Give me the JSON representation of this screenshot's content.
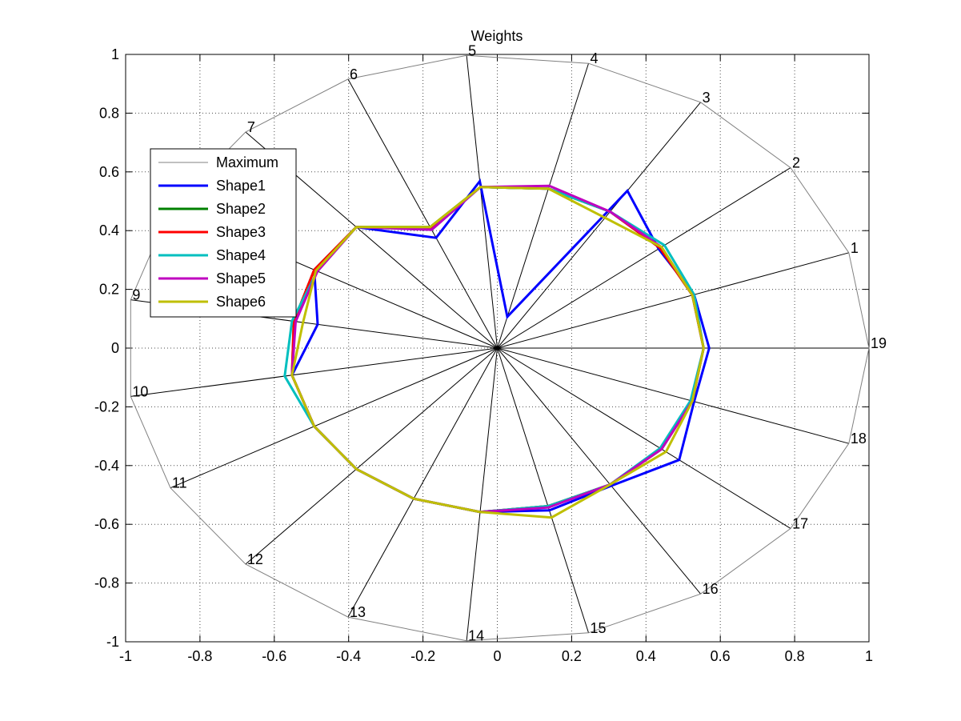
{
  "chart_data": {
    "type": "polar-line",
    "title": "Weights",
    "xlim": [
      -1,
      1
    ],
    "ylim": [
      -1,
      1
    ],
    "xticks": [
      "-1",
      "-0.8",
      "-0.6",
      "-0.4",
      "-0.2",
      "0",
      "0.2",
      "0.4",
      "0.6",
      "0.8",
      "1"
    ],
    "yticks": [
      "-1",
      "-0.8",
      "-0.6",
      "-0.4",
      "-0.2",
      "0",
      "0.2",
      "0.4",
      "0.6",
      "0.8",
      "1"
    ],
    "grid": true,
    "legend_position": "upper-left",
    "spoke_labels": [
      "1",
      "2",
      "3",
      "4",
      "5",
      "6",
      "7",
      "8",
      "9",
      "10",
      "11",
      "12",
      "13",
      "14",
      "15",
      "16",
      "17",
      "18",
      "19"
    ],
    "spoke_angles_deg": [
      18.95,
      37.9,
      56.84,
      75.79,
      94.74,
      113.68,
      132.63,
      151.58,
      170.53,
      189.47,
      208.42,
      227.37,
      246.32,
      265.26,
      284.21,
      303.16,
      322.11,
      341.05,
      360
    ],
    "series": [
      {
        "name": "Maximum",
        "color": "#808080",
        "width": 1,
        "values": [
          1,
          1,
          1,
          1,
          1,
          1,
          1,
          1,
          1,
          1,
          1,
          1,
          1,
          1,
          1,
          1,
          1,
          1,
          1
        ]
      },
      {
        "name": "Shape1",
        "color": "#0000ff",
        "width": 3,
        "values": [
          0.56,
          0.55,
          0.64,
          0.11,
          0.57,
          0.41,
          0.56,
          0.56,
          0.49,
          0.56,
          0.56,
          0.56,
          0.56,
          0.56,
          0.57,
          0.56,
          0.62,
          0.56,
          0.57
        ]
      },
      {
        "name": "Shape2",
        "color": "#008000",
        "width": 3,
        "values": [
          0.555,
          0.555,
          0.555,
          0.56,
          0.55,
          0.45,
          0.56,
          0.56,
          0.555,
          0.56,
          0.56,
          0.56,
          0.56,
          0.56,
          0.555,
          0.555,
          0.56,
          0.555,
          0.555
        ]
      },
      {
        "name": "Shape3",
        "color": "#ff0000",
        "width": 3,
        "values": [
          0.555,
          0.555,
          0.555,
          0.56,
          0.55,
          0.445,
          0.56,
          0.56,
          0.555,
          0.56,
          0.56,
          0.56,
          0.56,
          0.56,
          0.555,
          0.555,
          0.56,
          0.555,
          0.555
        ]
      },
      {
        "name": "Shape4",
        "color": "#00bfbf",
        "width": 3,
        "values": [
          0.56,
          0.57,
          0.555,
          0.56,
          0.55,
          0.44,
          0.56,
          0.55,
          0.56,
          0.58,
          0.56,
          0.56,
          0.56,
          0.56,
          0.555,
          0.555,
          0.555,
          0.55,
          0.555
        ]
      },
      {
        "name": "Shape5",
        "color": "#bf00bf",
        "width": 3,
        "values": [
          0.555,
          0.56,
          0.555,
          0.57,
          0.55,
          0.44,
          0.56,
          0.55,
          0.55,
          0.56,
          0.56,
          0.56,
          0.56,
          0.56,
          0.56,
          0.555,
          0.56,
          0.555,
          0.555
        ]
      },
      {
        "name": "Shape6",
        "color": "#bfbf00",
        "width": 3,
        "values": [
          0.555,
          0.56,
          0.53,
          0.56,
          0.55,
          0.45,
          0.56,
          0.555,
          0.53,
          0.56,
          0.56,
          0.56,
          0.56,
          0.56,
          0.595,
          0.555,
          0.575,
          0.555,
          0.555
        ]
      }
    ]
  }
}
